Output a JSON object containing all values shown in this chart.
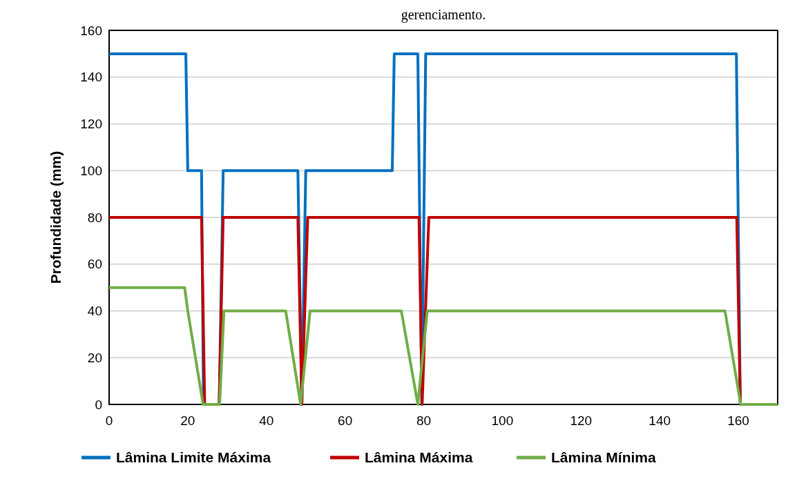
{
  "chart_data": {
    "type": "line",
    "title": "gerenciamento.",
    "ylabel": "Profundidade (mm)",
    "xlim": [
      0,
      170
    ],
    "xticks": [
      0,
      20,
      40,
      60,
      80,
      100,
      120,
      140,
      160
    ],
    "ylim": [
      0,
      160
    ],
    "yticks": [
      0,
      20,
      40,
      60,
      80,
      100,
      120,
      140,
      160
    ],
    "grid": "y",
    "legend": "bottom",
    "line_style": "solid",
    "marker": "none",
    "series": [
      {
        "name": "Lâmina Limite Máxima",
        "color": "#0070c0",
        "x": [
          0,
          19.5,
          20,
          23.5,
          24,
          28,
          29,
          48,
          49,
          50,
          72,
          72.5,
          78.5,
          79.5,
          80.5,
          159.5,
          160.5,
          170
        ],
        "values": [
          150,
          150,
          100,
          100,
          0,
          0,
          100,
          100,
          0,
          100,
          100,
          150,
          150,
          0,
          150,
          150,
          0,
          0
        ]
      },
      {
        "name": "Lâmina Máxima",
        "color": "#c00000",
        "x": [
          0,
          23.5,
          24.3,
          28,
          29,
          48,
          49,
          50.5,
          78.8,
          79.6,
          81.3,
          159.6,
          160.5
        ],
        "values": [
          80,
          80,
          0,
          0,
          80,
          80,
          0,
          80,
          80,
          0,
          80,
          80,
          0
        ]
      },
      {
        "name": "Lâmina Mínima",
        "color": "#70ad47",
        "x": [
          0,
          19.2,
          20,
          23.9,
          28.1,
          29.2,
          44.9,
          48.7,
          51.1,
          74.3,
          78.5,
          80.9,
          156.6,
          160.6,
          170
        ],
        "values": [
          50,
          50,
          40,
          0,
          0,
          40,
          40,
          0,
          40,
          40,
          0,
          40,
          40,
          0,
          0
        ]
      }
    ]
  }
}
